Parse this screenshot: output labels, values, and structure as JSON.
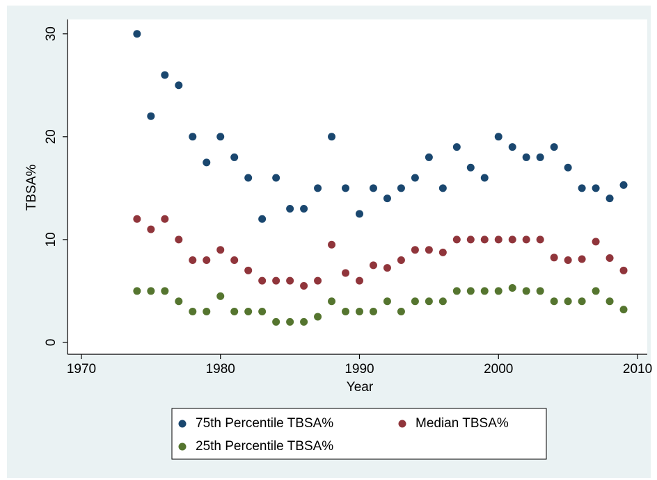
{
  "chart_data": {
    "type": "scatter",
    "x_label": "Year",
    "y_label": "TBSA%",
    "x": [
      1974,
      1975,
      1976,
      1977,
      1978,
      1979,
      1980,
      1981,
      1982,
      1983,
      1984,
      1985,
      1986,
      1987,
      1988,
      1989,
      1990,
      1991,
      1992,
      1993,
      1994,
      1995,
      1996,
      1997,
      1998,
      1999,
      2000,
      2001,
      2002,
      2003,
      2004,
      2005,
      2006,
      2007,
      2008,
      2009
    ],
    "series": [
      {
        "name": "75th Percentile TBSA%",
        "color": "#1a476f",
        "values": [
          30,
          22,
          26,
          25,
          20,
          17.5,
          20,
          18,
          16,
          12,
          16,
          13,
          13,
          15,
          20,
          15,
          12.5,
          15,
          14,
          15,
          16,
          18,
          15,
          19,
          17,
          16,
          20,
          19,
          18,
          18,
          19,
          17,
          15,
          15,
          14,
          15.3
        ]
      },
      {
        "name": "Median TBSA%",
        "color": "#90353b",
        "values": [
          12,
          11,
          12,
          10,
          8,
          8,
          9,
          8,
          7,
          6,
          6,
          6,
          5.5,
          6,
          9.5,
          6.75,
          6,
          7.5,
          7.25,
          8,
          9,
          9,
          8.75,
          10,
          10,
          10,
          10,
          10,
          10,
          10,
          8.25,
          8,
          8.1,
          9.8,
          8.2,
          7
        ]
      },
      {
        "name": "25th Percentile TBSA%",
        "color": "#55752f",
        "values": [
          5,
          5,
          5,
          4,
          3,
          3,
          4.5,
          3,
          3,
          3,
          2,
          2,
          2,
          2.5,
          4,
          3,
          3,
          3,
          4,
          3,
          4,
          4,
          4,
          5,
          5,
          5,
          5,
          5.3,
          5,
          5,
          4,
          4,
          4,
          5,
          4,
          3.2
        ]
      }
    ],
    "xlim": [
      1969,
      2010.7
    ],
    "xticks": [
      1970,
      1980,
      1990,
      2000,
      2010
    ],
    "ylim": [
      -1.15,
      31.4
    ],
    "yticks": [
      0,
      10,
      20,
      30
    ],
    "grid": false,
    "legend": "bottom"
  }
}
